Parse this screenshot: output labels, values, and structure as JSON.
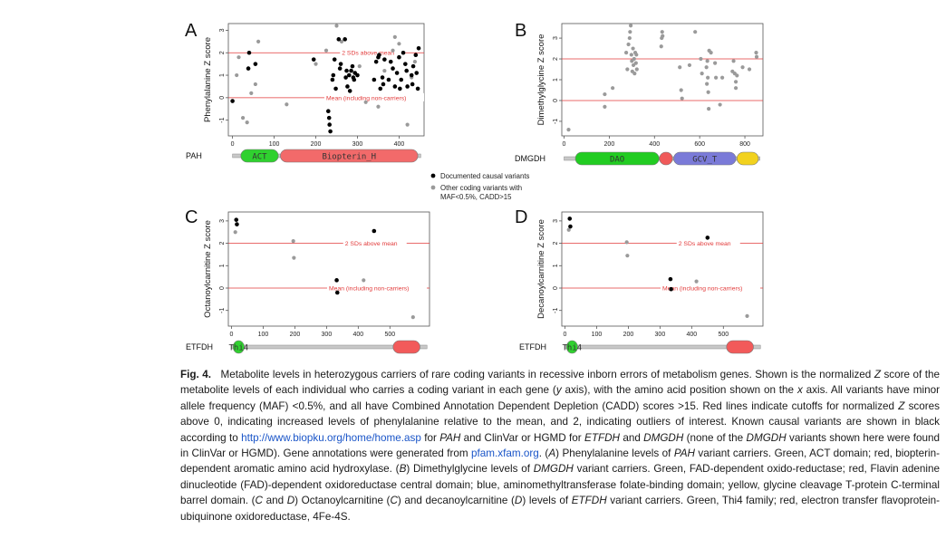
{
  "colors": {
    "causal": "#000000",
    "other": "#9a9a9a",
    "cutoff": "#e23a3a",
    "act_green": "#2fd12f",
    "thi4_green": "#2fd12f",
    "biopterin_red": "#f26a6a",
    "fad_green": "#22cc22",
    "fad_red": "#f05a5a",
    "gcv_blue": "#7a7ad8",
    "gcv_yellow": "#f2d21e",
    "etf_red": "#f25a5a",
    "link": "#1a55c8"
  },
  "shared": {
    "line_high_label": "2 SDs above mean",
    "line_mean_label": "Mean (including non-carriers)",
    "legend": {
      "causal_label": "Documented causal variants",
      "other_label_1": "Other coding variants with",
      "other_label_2": "MAF<0.5%, CADD>15"
    }
  },
  "chart_data": [
    {
      "panel": "A",
      "type": "scatter",
      "gene": "PAH",
      "ylabel": "Phenylalanine Z score",
      "xlim": [
        -10,
        460
      ],
      "ylim": [
        -1.7,
        3.3
      ],
      "xticks": [
        0,
        100,
        200,
        300,
        400
      ],
      "yticks": [
        -1,
        0,
        1,
        2,
        3
      ],
      "hlines": [
        2,
        0
      ],
      "show_line_labels": true,
      "protein_length": 452,
      "domains": [
        {
          "name": "ACT",
          "start": 20,
          "end": 110,
          "color": "act_green"
        },
        {
          "name": "Biopterin_H",
          "start": 115,
          "end": 445,
          "color": "biopterin_red"
        }
      ],
      "causal": [
        [
          0,
          -0.15
        ],
        [
          38,
          1.3
        ],
        [
          40,
          2.0
        ],
        [
          55,
          1.5
        ],
        [
          195,
          1.7
        ],
        [
          230,
          -0.6
        ],
        [
          232,
          -0.9
        ],
        [
          233,
          -1.2
        ],
        [
          235,
          -1.5
        ],
        [
          240,
          0.8
        ],
        [
          242,
          1.0
        ],
        [
          245,
          1.7
        ],
        [
          248,
          0.4
        ],
        [
          255,
          2.6
        ],
        [
          258,
          1.3
        ],
        [
          260,
          1.5
        ],
        [
          270,
          2.6
        ],
        [
          272,
          0.9
        ],
        [
          274,
          1.2
        ],
        [
          276,
          0.5
        ],
        [
          280,
          1.0
        ],
        [
          282,
          0.3
        ],
        [
          285,
          1.2
        ],
        [
          288,
          1.4
        ],
        [
          290,
          0.9
        ],
        [
          292,
          0.8
        ],
        [
          294,
          1.1
        ],
        [
          300,
          1.0
        ],
        [
          340,
          0.8
        ],
        [
          345,
          1.6
        ],
        [
          350,
          1.8
        ],
        [
          352,
          1.9
        ],
        [
          355,
          0.4
        ],
        [
          360,
          0.9
        ],
        [
          362,
          0.6
        ],
        [
          365,
          1.7
        ],
        [
          375,
          0.8
        ],
        [
          380,
          1.6
        ],
        [
          385,
          1.3
        ],
        [
          390,
          0.5
        ],
        [
          395,
          1.1
        ],
        [
          400,
          1.8
        ],
        [
          402,
          0.4
        ],
        [
          405,
          0.8
        ],
        [
          410,
          2.0
        ],
        [
          415,
          1.5
        ],
        [
          418,
          1.2
        ],
        [
          420,
          0.5
        ],
        [
          430,
          1.0
        ],
        [
          432,
          0.6
        ],
        [
          434,
          1.4
        ],
        [
          440,
          1.9
        ],
        [
          442,
          1.1
        ],
        [
          445,
          0.4
        ],
        [
          447,
          2.2
        ]
      ],
      "other": [
        [
          10,
          1.0
        ],
        [
          15,
          1.8
        ],
        [
          25,
          -0.9
        ],
        [
          35,
          -1.1
        ],
        [
          45,
          0.2
        ],
        [
          55,
          0.6
        ],
        [
          62,
          2.5
        ],
        [
          130,
          -0.3
        ],
        [
          200,
          1.5
        ],
        [
          225,
          2.1
        ],
        [
          250,
          3.2
        ],
        [
          262,
          2.5
        ],
        [
          305,
          1.4
        ],
        [
          320,
          -0.2
        ],
        [
          350,
          -0.4
        ],
        [
          365,
          1.2
        ],
        [
          385,
          2.1
        ],
        [
          390,
          2.7
        ],
        [
          400,
          2.4
        ],
        [
          420,
          -1.2
        ],
        [
          430,
          0.9
        ],
        [
          438,
          1.6
        ]
      ]
    },
    {
      "panel": "B",
      "type": "scatter",
      "gene": "DMGDH",
      "ylabel": "Dimethylglycine Z score",
      "xlim": [
        -10,
        880
      ],
      "ylim": [
        -1.7,
        3.7
      ],
      "xticks": [
        0,
        200,
        400,
        600,
        800
      ],
      "yticks": [
        -1,
        0,
        1,
        2,
        3
      ],
      "hlines": [
        2,
        0
      ],
      "show_line_labels": false,
      "protein_length": 866,
      "domains": [
        {
          "name": "DAO",
          "start": 50,
          "end": 420,
          "color": "fad_green"
        },
        {
          "name": "",
          "start": 422,
          "end": 480,
          "color": "fad_red"
        },
        {
          "name": "GCV_T",
          "start": 485,
          "end": 760,
          "color": "gcv_blue"
        },
        {
          "name": "",
          "start": 765,
          "end": 860,
          "color": "gcv_yellow"
        }
      ],
      "causal": [],
      "other": [
        [
          20,
          -1.4
        ],
        [
          180,
          0.3
        ],
        [
          180,
          -0.3
        ],
        [
          215,
          0.6
        ],
        [
          275,
          2.3
        ],
        [
          280,
          1.5
        ],
        [
          285,
          2.7
        ],
        [
          290,
          3.0
        ],
        [
          292,
          3.3
        ],
        [
          295,
          3.6
        ],
        [
          298,
          2.2
        ],
        [
          300,
          1.9
        ],
        [
          302,
          1.4
        ],
        [
          305,
          2.5
        ],
        [
          307,
          1.7
        ],
        [
          310,
          2.0
        ],
        [
          312,
          1.3
        ],
        [
          315,
          2.3
        ],
        [
          318,
          1.8
        ],
        [
          320,
          2.2
        ],
        [
          322,
          1.5
        ],
        [
          430,
          2.6
        ],
        [
          432,
          3.0
        ],
        [
          434,
          3.3
        ],
        [
          436,
          3.1
        ],
        [
          512,
          1.6
        ],
        [
          518,
          0.5
        ],
        [
          522,
          0.1
        ],
        [
          555,
          1.7
        ],
        [
          580,
          3.3
        ],
        [
          605,
          2.0
        ],
        [
          610,
          1.3
        ],
        [
          630,
          1.6
        ],
        [
          632,
          0.8
        ],
        [
          634,
          1.9
        ],
        [
          636,
          1.1
        ],
        [
          638,
          0.4
        ],
        [
          640,
          -0.4
        ],
        [
          642,
          2.4
        ],
        [
          650,
          2.3
        ],
        [
          668,
          1.8
        ],
        [
          672,
          1.1
        ],
        [
          690,
          -0.2
        ],
        [
          700,
          1.1
        ],
        [
          745,
          1.4
        ],
        [
          750,
          1.9
        ],
        [
          755,
          1.3
        ],
        [
          760,
          0.6
        ],
        [
          790,
          1.6
        ],
        [
          820,
          1.5
        ],
        [
          850,
          2.3
        ],
        [
          852,
          2.1
        ],
        [
          760,
          0.9
        ],
        [
          765,
          1.2
        ]
      ]
    },
    {
      "panel": "C",
      "type": "scatter",
      "gene": "ETFDH",
      "ylabel": "Octanoylcarnitine Z score",
      "xlim": [
        -10,
        625
      ],
      "ylim": [
        -1.7,
        3.4
      ],
      "xticks": [
        0,
        100,
        200,
        300,
        400,
        500
      ],
      "yticks": [
        -1,
        0,
        1,
        2,
        3
      ],
      "hlines": [
        2,
        0
      ],
      "show_line_labels": true,
      "protein_length": 617,
      "domains": [
        {
          "name": "Thi4",
          "start": 5,
          "end": 40,
          "color": "thi4_green"
        },
        {
          "name": "",
          "start": 510,
          "end": 595,
          "color": "etf_red"
        }
      ],
      "causal": [
        [
          15,
          3.05
        ],
        [
          17,
          2.85
        ],
        [
          332,
          0.35
        ],
        [
          334,
          -0.2
        ],
        [
          450,
          2.55
        ]
      ],
      "other": [
        [
          12,
          2.5
        ],
        [
          195,
          2.1
        ],
        [
          197,
          1.35
        ],
        [
          417,
          0.35
        ],
        [
          573,
          -1.3
        ]
      ]
    },
    {
      "panel": "D",
      "type": "scatter",
      "gene": "ETFDH",
      "ylabel": "Decanoylcarnitine Z score",
      "xlim": [
        -10,
        625
      ],
      "ylim": [
        -1.7,
        3.4
      ],
      "xticks": [
        0,
        100,
        200,
        300,
        400,
        500
      ],
      "yticks": [
        -1,
        0,
        1,
        2,
        3
      ],
      "hlines": [
        2,
        0
      ],
      "show_line_labels": true,
      "protein_length": 617,
      "domains": [
        {
          "name": "Thi4",
          "start": 5,
          "end": 40,
          "color": "thi4_green"
        },
        {
          "name": "",
          "start": 510,
          "end": 595,
          "color": "etf_red"
        }
      ],
      "causal": [
        [
          15,
          3.1
        ],
        [
          17,
          2.75
        ],
        [
          333,
          0.4
        ],
        [
          335,
          -0.05
        ],
        [
          450,
          2.25
        ]
      ],
      "other": [
        [
          12,
          2.6
        ],
        [
          195,
          2.05
        ],
        [
          197,
          1.45
        ],
        [
          415,
          0.3
        ],
        [
          575,
          -1.25
        ]
      ]
    }
  ],
  "caption": {
    "label": "Fig. 4.",
    "s1": "Metabolite levels in heterozygous carriers of rare coding variants in recessive inborn errors of metabolism genes. Shown is the normalized ",
    "s1_z": "Z",
    "s2": " score of the metabolite levels of each individual who carries a coding variant in each gene (",
    "s2_y": "y",
    "s3": " axis), with the amino acid position shown on the ",
    "s3_x": "x",
    "s4": " axis. All variants have minor allele frequency (MAF) <0.5%, and all have Combined Annotation Dependent Depletion (CADD) scores >15. Red lines indicate cutoffs for normalized ",
    "s4_z": "Z",
    "s5": " scores above 0, indicating increased levels of phenylalanine relative to the mean, and 2, indicating outliers of interest. Known causal variants are shown in black according to ",
    "link1": "http://www.biopku.org/home/home.asp",
    "s6": " for ",
    "s6_pah": "PAH",
    "s7": " and ClinVar or HGMD for ",
    "s7_etfdh": "ETFDH",
    "s8": " and ",
    "s8_dmgdh": "DMGDH",
    "s9": " (none of the ",
    "s9_dmgdh": "DMGDH",
    "s10": " variants shown here were found in ClinVar or HGMD). Gene annotations were generated from ",
    "link2": "pfam.xfam.org",
    "s11": ". (",
    "s11_a": "A",
    "s12": ") Phenylalanine levels of ",
    "s12_pah": "PAH",
    "s13": " variant carriers. Green, ACT domain; red, biopterin-dependent aromatic amino acid hydroxylase. (",
    "s13_b": "B",
    "s14": ") Dimethylglycine levels of ",
    "s14_dmgdh": "DMGDH",
    "s15": " variant carriers. Green, FAD-dependent oxido-reductase; red, Flavin adenine dinucleotide (FAD)-dependent oxidoreductase central domain; blue, aminomethyltransferase folate-binding domain; yellow, glycine cleavage T-protein C-terminal barrel domain. (",
    "s15_c": "C",
    "s16": " and ",
    "s16_d": "D",
    "s17": ") Octanoylcarnitine (",
    "s17_c": "C",
    "s18": ") and decanoylcarnitine (",
    "s18_d": "D",
    "s19": ") levels of ",
    "s19_etfdh": "ETFDH",
    "s20": " variant carriers. Green, Thi4 family; red, electron transfer flavoprotein-ubiquinone oxidoreductase, 4Fe-4S."
  }
}
